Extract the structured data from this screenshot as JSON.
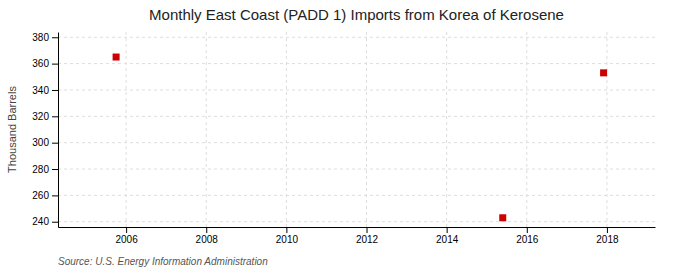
{
  "chart_data": {
    "type": "scatter",
    "title": "Monthly East Coast (PADD 1) Imports from Korea of Kerosene",
    "ylabel": "Thousand Barrels",
    "source": "Source: U.S. Energy Information Administration",
    "x": [
      2005.75,
      2015.4,
      2017.917
    ],
    "values": [
      365,
      243,
      353
    ],
    "color": "#cc0000",
    "marker": "square",
    "xlim": [
      2004.3,
      2019.2
    ],
    "ylim": [
      236,
      384
    ],
    "xticks": [
      2006,
      2008,
      2010,
      2012,
      2014,
      2016,
      2018
    ],
    "yticks": [
      240,
      260,
      280,
      300,
      320,
      340,
      360,
      380
    ],
    "grid": true
  }
}
